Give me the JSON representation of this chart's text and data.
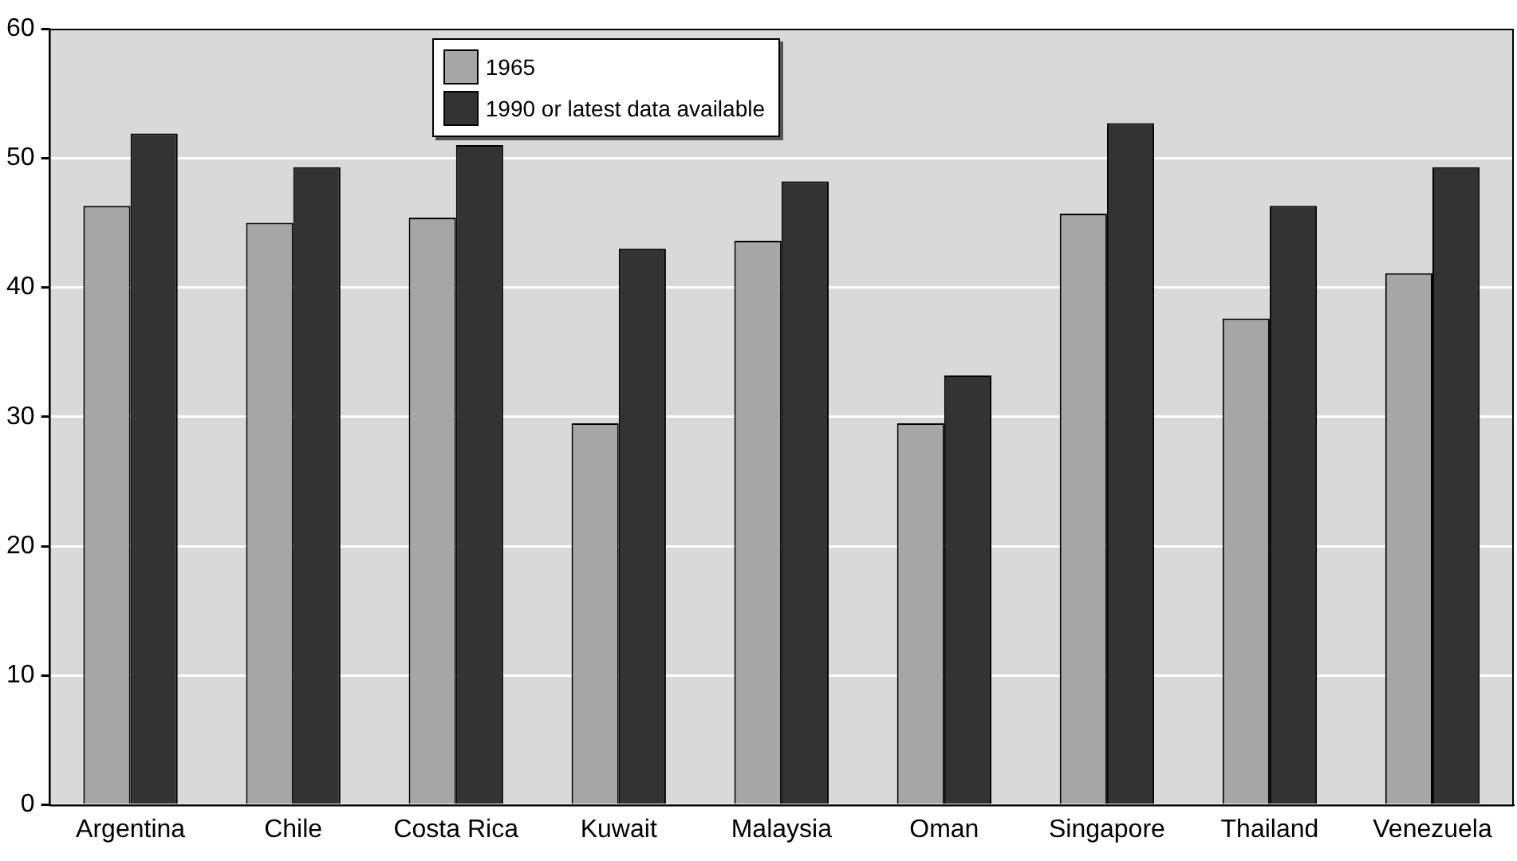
{
  "chart_data": {
    "type": "bar",
    "categories": [
      "Argentina",
      "Chile",
      "Costa Rica",
      "Kuwait",
      "Malaysia",
      "Oman",
      "Singapore",
      "Thailand",
      "Venezuela"
    ],
    "series": [
      {
        "name": "1965",
        "color": "#a6a6a6",
        "values": [
          46.3,
          45.0,
          45.4,
          29.5,
          43.6,
          29.5,
          45.7,
          37.6,
          41.1
        ]
      },
      {
        "name": "1990 or latest data available",
        "color": "#333333",
        "values": [
          51.9,
          49.3,
          51.0,
          43.0,
          48.2,
          33.2,
          52.7,
          46.3,
          49.3
        ]
      }
    ],
    "ylim": [
      0,
      60
    ],
    "yticks": [
      0,
      10,
      20,
      30,
      40,
      50,
      60
    ],
    "grid": "y",
    "legend": "top"
  }
}
